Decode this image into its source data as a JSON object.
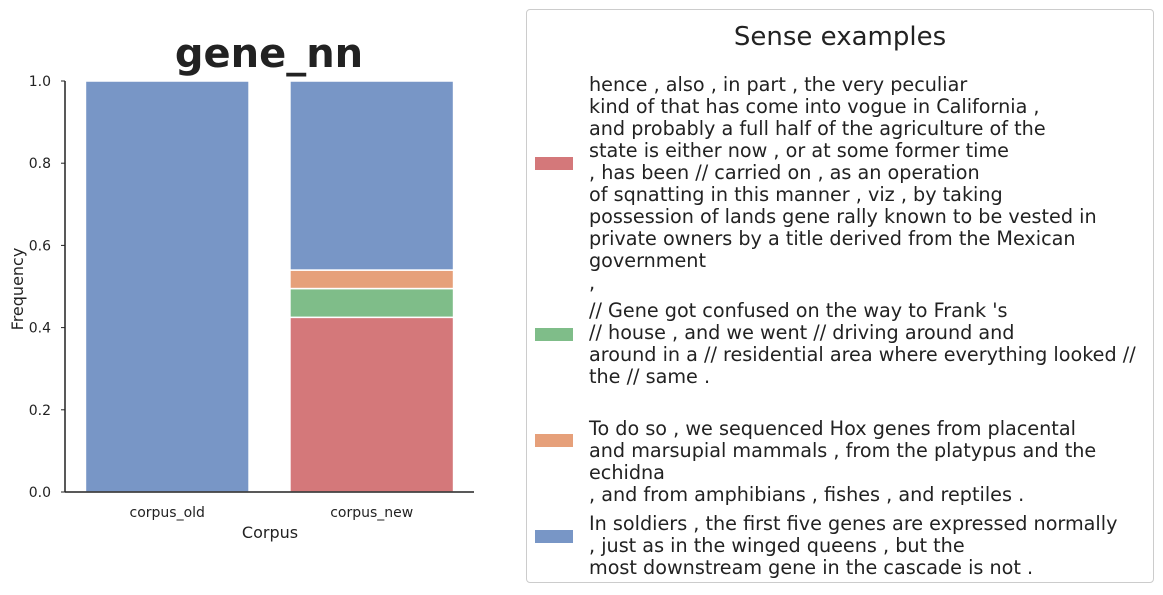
{
  "chart_data": {
    "type": "bar",
    "stacked": true,
    "title": "gene_nn",
    "xlabel": "Corpus",
    "ylabel": "Frequency",
    "ylim": [
      0,
      1.0
    ],
    "yticks": [
      "0.0",
      "0.2",
      "0.4",
      "0.6",
      "0.8",
      "1.0"
    ],
    "categories": [
      "corpus_old",
      "corpus_new"
    ],
    "series": [
      {
        "color": "#d4787a",
        "values": [
          0.0,
          0.425
        ]
      },
      {
        "color": "#7fbd89",
        "values": [
          0.0,
          0.07
        ]
      },
      {
        "color": "#e6a07a",
        "values": [
          0.0,
          0.045
        ]
      },
      {
        "color": "#7896c6",
        "values": [
          1.0,
          0.46
        ]
      }
    ],
    "grid": false,
    "legend_position": "right"
  },
  "legend": {
    "title": "Sense examples",
    "entries": [
      {
        "color": "#d4787a",
        "text": "hence , also , in part , the very peculiar\nkind of that has come into vogue in California ,\nand probably a full half of the agriculture of the\nstate is either now , or at some former time\n, has been // carried on , as an operation\nof sqnatting in this manner , viz , by taking\npossession of lands gene rally known to be vested in\nprivate owners by a title derived from the Mexican government\n,"
      },
      {
        "color": "#7fbd89",
        "text": "// Gene got confused on the way to Frank 's\n// house , and we went // driving around and\naround in a // residential area where everything looked //\nthe // same ."
      },
      {
        "color": "#e6a07a",
        "text": "To do so , we sequenced Hox genes from placental\nand marsupial mammals , from the platypus and the echidna\n, and from amphibians , fishes , and reptiles ."
      },
      {
        "color": "#7896c6",
        "text": "In soldiers , the first five genes are expressed normally\n, just as in the winged queens , but the\nmost downstream gene in the cascade is not ."
      }
    ]
  }
}
